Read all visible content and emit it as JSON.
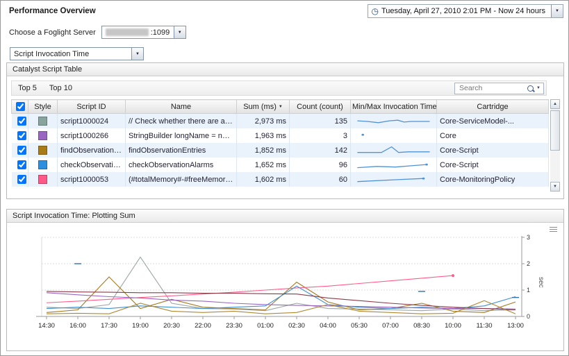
{
  "page": {
    "title": "Performance Overview"
  },
  "time_range": {
    "icon_glyph": "◷",
    "label": "Tuesday, April 27, 2010 2:01 PM - Now 24 hours",
    "arrow_glyph": "▼"
  },
  "server_picker": {
    "label": "Choose a Foglight Server",
    "value_visible": ":1099",
    "arrow_glyph": "▼"
  },
  "metric_select": {
    "value": "Script Invocation Time",
    "arrow_glyph": "▼"
  },
  "catalyst_panel": {
    "title": "Catalyst Script Table",
    "top5_label": "Top 5",
    "top10_label": "Top 10",
    "search": {
      "placeholder": "Search",
      "arrow_glyph": "▼"
    },
    "scrollbar": {
      "up_glyph": "▲",
      "down_glyph": "▼"
    },
    "table": {
      "select_all_checked": true,
      "sort_glyph": "▼",
      "spark_color": "#4f93d6",
      "columns": [
        "",
        "Style",
        "Script ID",
        "Name",
        "Sum (ms)",
        "Count (count)",
        "Min/Max Invocation Time",
        "Cartridge"
      ],
      "rows": [
        {
          "checked": true,
          "color": "#87a59c",
          "script_id": "script1000024",
          "name": "// Check whether there are any alar...",
          "sum": "2,973 ms",
          "count": "135",
          "cartridge": "Core-ServiceModel-...",
          "spark": {
            "points": [
              [
                3,
                9
              ],
              [
                16,
                10
              ],
              [
                30,
                12
              ],
              [
                44,
                9
              ],
              [
                55,
                8
              ],
              [
                63,
                11
              ],
              [
                72,
                10
              ],
              [
                84,
                10
              ],
              [
                96,
                10
              ]
            ]
          }
        },
        {
          "checked": true,
          "color": "#9a67c0",
          "script_id": "script1000266",
          "name": "StringBuilder longName = new Strin...",
          "sum": "1,963 ms",
          "count": "3",
          "cartridge": "Core",
          "spark": {
            "points": [
              [
                10,
                8
              ]
            ],
            "marker": "dot"
          }
        },
        {
          "checked": true,
          "color": "#a87b16",
          "script_id": "findObservationE...",
          "name": "findObservationEntries",
          "sum": "1,852 ms",
          "count": "142",
          "cartridge": "Core-Script",
          "spark": {
            "points": [
              [
                3,
                13
              ],
              [
                34,
                13
              ],
              [
                47,
                4
              ],
              [
                56,
                13
              ],
              [
                68,
                12
              ],
              [
                96,
                12
              ]
            ]
          }
        },
        {
          "checked": true,
          "color": "#2f8fdf",
          "script_id": "checkObservation...",
          "name": "checkObservationAlarms",
          "sum": "1,652 ms",
          "count": "96",
          "cartridge": "Core-Script",
          "spark": {
            "points": [
              [
                3,
                14
              ],
              [
                28,
                12
              ],
              [
                52,
                13
              ],
              [
                72,
                11
              ],
              [
                92,
                9
              ]
            ],
            "dot_end": true
          }
        },
        {
          "checked": true,
          "color": "#ff5a87",
          "script_id": "script1000053",
          "name": "(#totalMemory#-#freeMemory#)>...",
          "sum": "1,602 ms",
          "count": "60",
          "cartridge": "Core-MonitoringPolicy",
          "spark": {
            "points": [
              [
                3,
                13
              ],
              [
                52,
                10
              ],
              [
                88,
                8
              ]
            ],
            "dot_end": true
          }
        }
      ]
    }
  },
  "chart_panel": {
    "title": "Script Invocation Time: Plotting Sum"
  },
  "chart_data": {
    "type": "line",
    "title": "Script Invocation Time: Plotting Sum",
    "ylabel": "sec",
    "ylim": [
      0,
      3
    ],
    "yticks": [
      0,
      1,
      2,
      3
    ],
    "grid": "horizontal-dotted",
    "legend": "none",
    "x_categories": [
      "14:30",
      "16:00",
      "17:30",
      "19:00",
      "20:30",
      "22:00",
      "23:30",
      "01:00",
      "02:30",
      "04:00",
      "05:30",
      "07:00",
      "08:30",
      "10:00",
      "11:30",
      "13:00"
    ],
    "series": [
      {
        "name": "s1",
        "color": "#9aa5a5",
        "values": [
          0.35,
          0.3,
          0.45,
          2.25,
          0.5,
          0.3,
          0.28,
          0.22,
          0.5,
          0.3,
          0.28,
          0.25,
          0.22,
          0.28,
          0.22,
          0.25
        ]
      },
      {
        "name": "s2",
        "color": "#a6781c",
        "values": [
          0.15,
          0.25,
          1.5,
          0.3,
          0.65,
          0.35,
          0.3,
          0.25,
          1.3,
          0.55,
          0.25,
          0.3,
          0.5,
          0.2,
          0.15,
          0.55
        ]
      },
      {
        "name": "s3",
        "color": "#ff5c8a",
        "dot_end": true,
        "values": [
          0.52,
          0.58,
          0.65,
          0.72,
          0.78,
          0.85,
          0.92,
          1.0,
          1.08,
          1.15,
          1.25,
          1.35,
          1.45,
          1.55,
          null,
          null
        ]
      },
      {
        "name": "s4",
        "color": "#3f8fd2",
        "values": [
          0.3,
          0.35,
          0.3,
          0.4,
          0.35,
          0.3,
          0.35,
          0.4,
          1.15,
          0.45,
          0.35,
          0.3,
          0.35,
          0.3,
          0.4,
          0.75
        ]
      },
      {
        "name": "s5",
        "color": "#9a67c0",
        "values": [
          0.9,
          0.82,
          0.75,
          0.7,
          0.62,
          0.58,
          0.5,
          0.45,
          0.42,
          0.4,
          0.38,
          0.35,
          0.32,
          0.3,
          0.3,
          0.28
        ]
      },
      {
        "name": "s6",
        "color": "#8b3a4a",
        "values": [
          0.95,
          0.93,
          0.92,
          0.9,
          0.9,
          0.88,
          0.88,
          0.86,
          0.85,
          0.7,
          0.6,
          0.5,
          0.42,
          0.35,
          0.3,
          0.25
        ]
      },
      {
        "name": "s7",
        "color": "#2f6fb0",
        "values": [
          null,
          2.0,
          null,
          null,
          null,
          null,
          null,
          null,
          null,
          null,
          null,
          null,
          0.95,
          null,
          null,
          0.72
        ]
      },
      {
        "name": "s8",
        "color": "#b08830",
        "values": [
          0.1,
          0.12,
          0.1,
          0.5,
          0.2,
          0.15,
          0.2,
          0.1,
          0.15,
          0.45,
          0.2,
          0.15,
          0.1,
          0.12,
          0.6,
          0.1
        ]
      }
    ]
  }
}
